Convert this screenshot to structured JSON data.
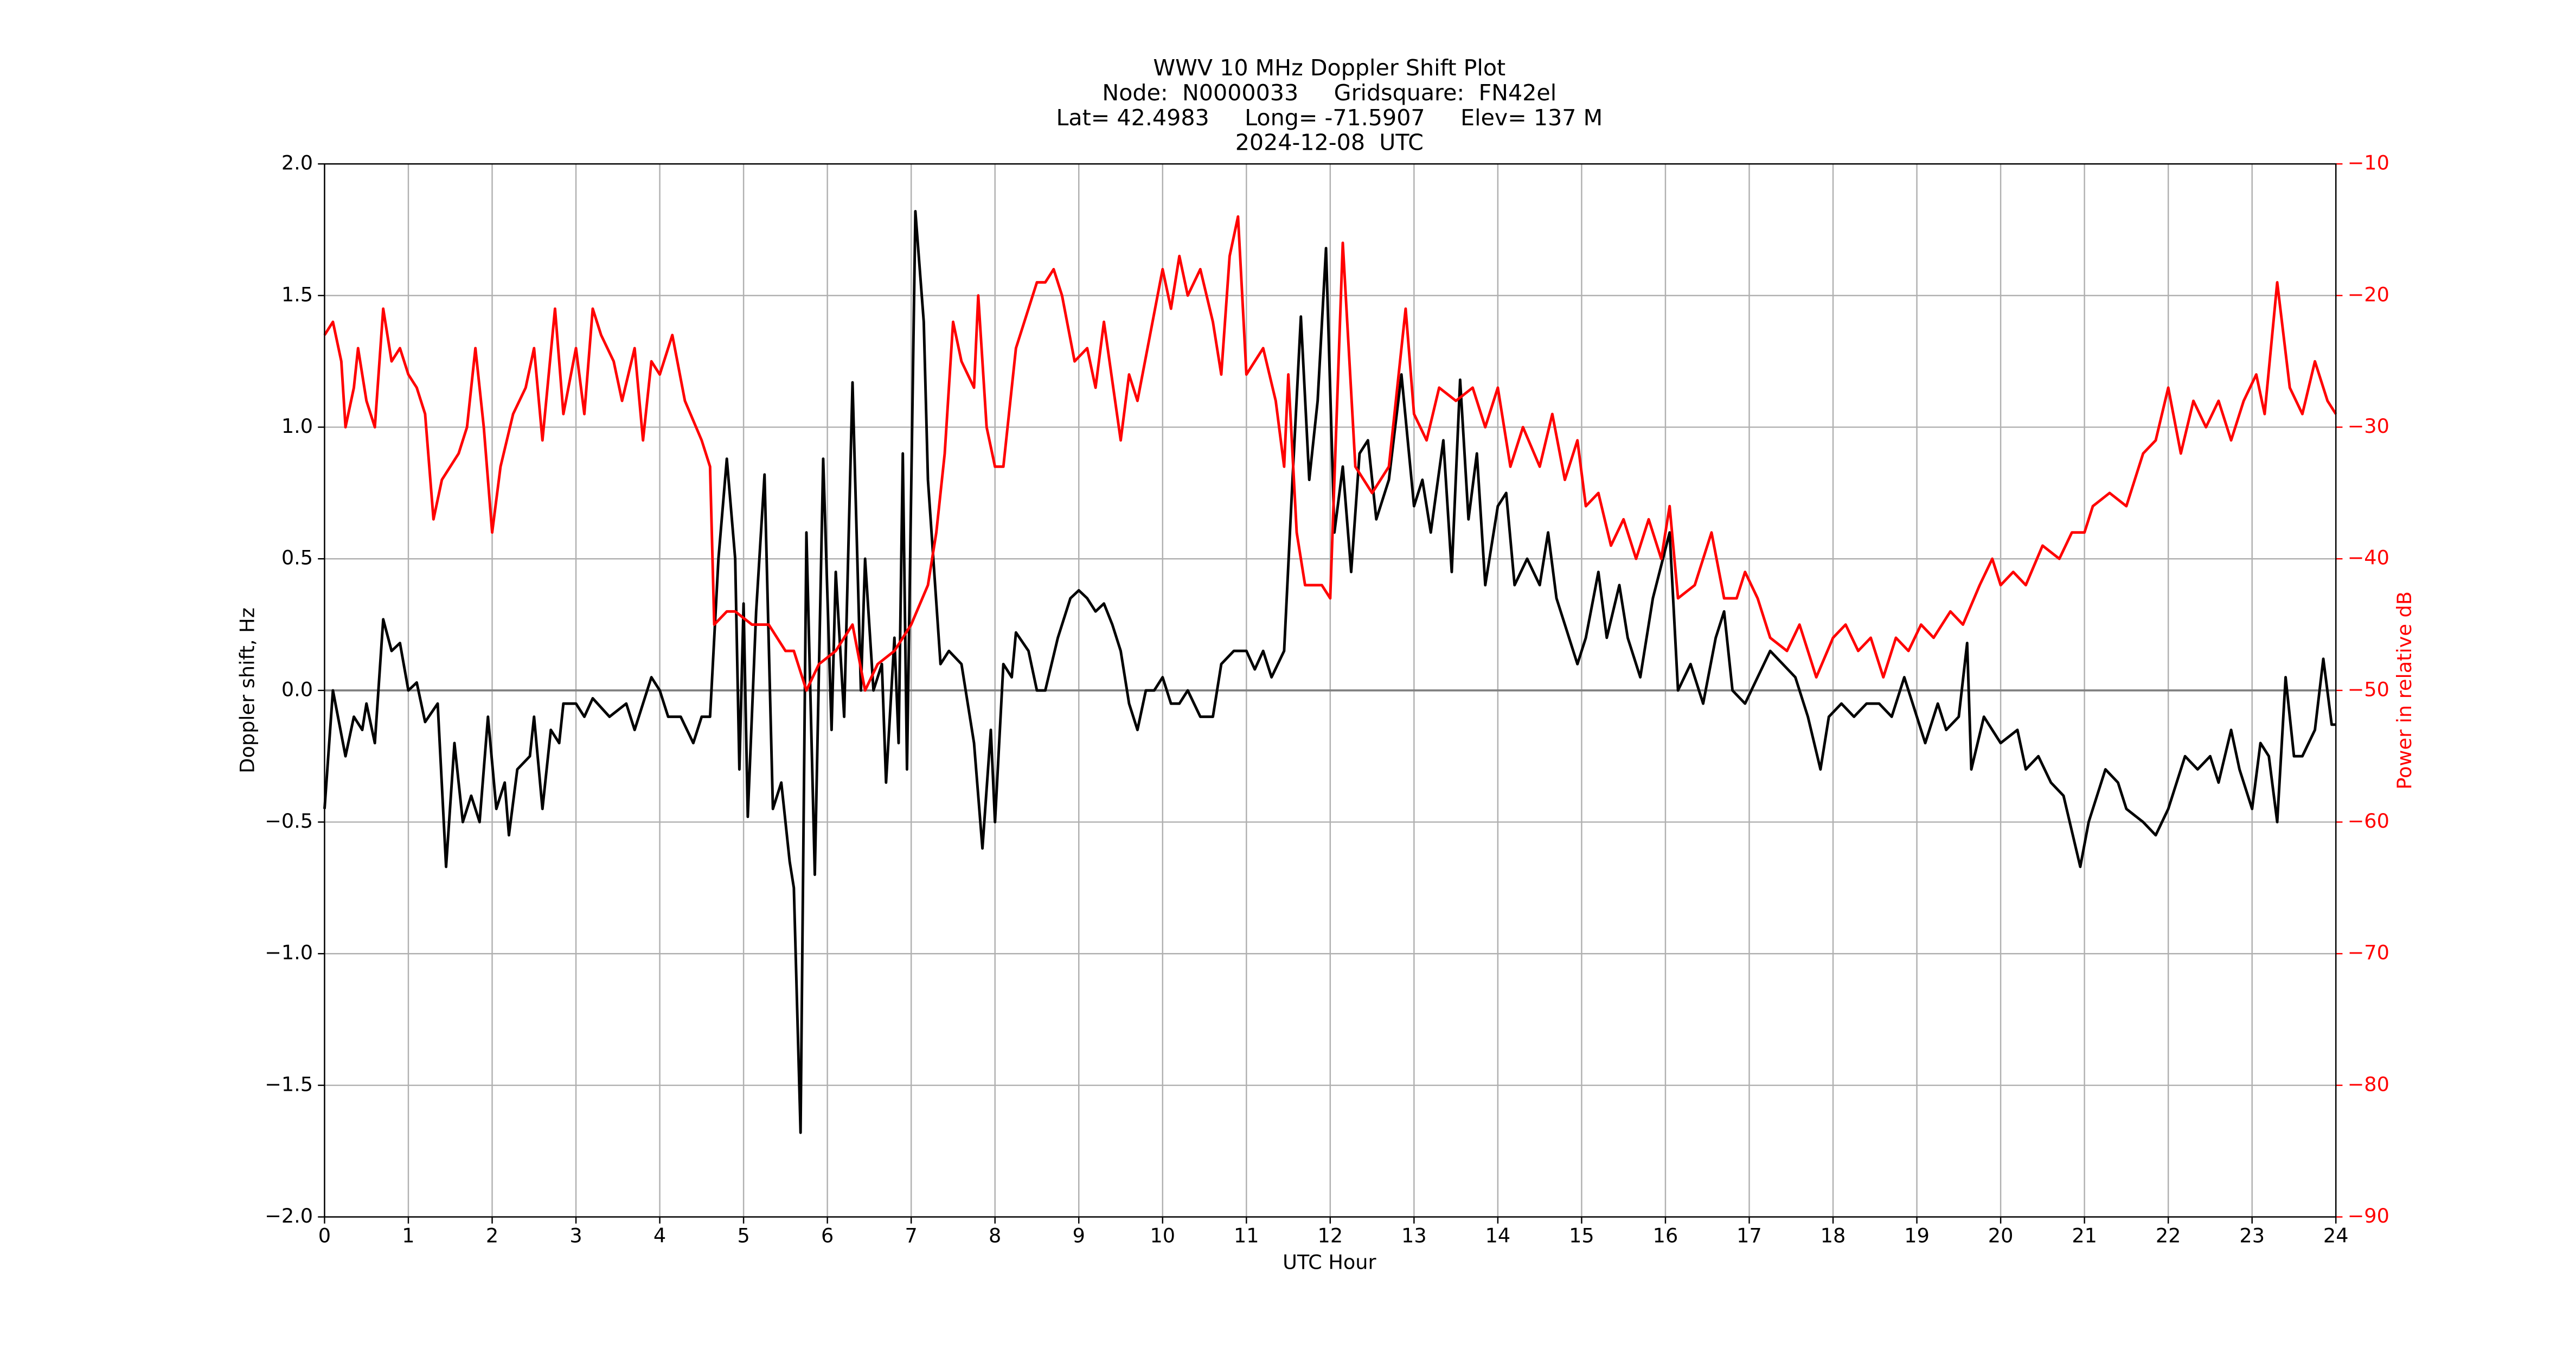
{
  "chart_data": {
    "type": "line",
    "title_lines": [
      "WWV 10 MHz Doppler Shift Plot",
      "Node:  N0000033     Gridsquare:  FN42el",
      "Lat= 42.4983     Long= -71.5907     Elev= 137 M",
      "2024-12-08  UTC"
    ],
    "x_label": "UTC Hour",
    "y_label": "Doppler shift, Hz",
    "y2_label": "Power in relative dB",
    "xlim": [
      0,
      24
    ],
    "xticks": [
      0,
      1,
      2,
      3,
      4,
      5,
      6,
      7,
      8,
      9,
      10,
      11,
      12,
      13,
      14,
      15,
      16,
      17,
      18,
      19,
      20,
      21,
      22,
      23,
      24
    ],
    "ylim": [
      -2.0,
      2.0
    ],
    "yticks": [
      {
        "value": -2.0,
        "label": "−2.0"
      },
      {
        "value": -1.5,
        "label": "−1.5"
      },
      {
        "value": -1.0,
        "label": "−1.0"
      },
      {
        "value": -0.5,
        "label": "−0.5"
      },
      {
        "value": 0.0,
        "label": "0.0"
      },
      {
        "value": 0.5,
        "label": "0.5"
      },
      {
        "value": 1.0,
        "label": "1.0"
      },
      {
        "value": 1.5,
        "label": "1.5"
      },
      {
        "value": 2.0,
        "label": "2.0"
      }
    ],
    "y2lim": [
      -90,
      -10
    ],
    "y2ticks": [
      {
        "value": -90,
        "label": "−90"
      },
      {
        "value": -80,
        "label": "−80"
      },
      {
        "value": -70,
        "label": "−70"
      },
      {
        "value": -60,
        "label": "−60"
      },
      {
        "value": -50,
        "label": "−50"
      },
      {
        "value": -40,
        "label": "−40"
      },
      {
        "value": -30,
        "label": "−30"
      },
      {
        "value": -20,
        "label": "−20"
      },
      {
        "value": -10,
        "label": "−10"
      }
    ],
    "y2_color": "#ff0000",
    "grid": true,
    "hline": 0,
    "series": [
      {
        "color": "#000000",
        "x": [
          0,
          0.1,
          0.25,
          0.35,
          0.45,
          0.5,
          0.6,
          0.7,
          0.8,
          0.9,
          1.0,
          1.1,
          1.2,
          1.35,
          1.45,
          1.55,
          1.65,
          1.75,
          1.85,
          1.95,
          2.05,
          2.15,
          2.2,
          2.3,
          2.45,
          2.5,
          2.6,
          2.7,
          2.8,
          2.85,
          3.0,
          3.1,
          3.2,
          3.4,
          3.6,
          3.7,
          3.8,
          3.9,
          4.0,
          4.1,
          4.25,
          4.4,
          4.5,
          4.6,
          4.7,
          4.8,
          4.9,
          4.95,
          5.0,
          5.05,
          5.15,
          5.25,
          5.35,
          5.45,
          5.55,
          5.6,
          5.68,
          5.75,
          5.85,
          5.95,
          6.05,
          6.1,
          6.2,
          6.3,
          6.4,
          6.45,
          6.55,
          6.65,
          6.7,
          6.8,
          6.85,
          6.9,
          6.95,
          7.05,
          7.15,
          7.2,
          7.35,
          7.45,
          7.6,
          7.75,
          7.85,
          7.95,
          8.0,
          8.1,
          8.2,
          8.25,
          8.4,
          8.5,
          8.6,
          8.75,
          8.9,
          9.0,
          9.1,
          9.2,
          9.3,
          9.4,
          9.5,
          9.6,
          9.7,
          9.8,
          9.9,
          10.0,
          10.1,
          10.2,
          10.3,
          10.45,
          10.6,
          10.7,
          10.85,
          11.0,
          11.1,
          11.2,
          11.3,
          11.45,
          11.55,
          11.65,
          11.75,
          11.85,
          11.95,
          12.05,
          12.15,
          12.25,
          12.35,
          12.45,
          12.55,
          12.7,
          12.85,
          13.0,
          13.1,
          13.2,
          13.35,
          13.45,
          13.55,
          13.65,
          13.75,
          13.85,
          14.0,
          14.1,
          14.2,
          14.35,
          14.5,
          14.6,
          14.7,
          14.85,
          14.95,
          15.05,
          15.2,
          15.3,
          15.45,
          15.55,
          15.7,
          15.85,
          16.05,
          16.15,
          16.3,
          16.45,
          16.6,
          16.7,
          16.8,
          16.95,
          17.1,
          17.25,
          17.4,
          17.55,
          17.7,
          17.85,
          17.95,
          18.1,
          18.25,
          18.4,
          18.55,
          18.7,
          18.85,
          19.0,
          19.1,
          19.25,
          19.35,
          19.5,
          19.6,
          19.65,
          19.8,
          20.0,
          20.2,
          20.3,
          20.45,
          20.6,
          20.75,
          20.95,
          21.05,
          21.25,
          21.4,
          21.5,
          21.7,
          21.85,
          22.0,
          22.1,
          22.2,
          22.35,
          22.5,
          22.6,
          22.75,
          22.85,
          23.0,
          23.1,
          23.2,
          23.3,
          23.4,
          23.5,
          23.6,
          23.75,
          23.85,
          23.95,
          24.0
        ],
        "values": [
          -0.45,
          0.0,
          -0.25,
          -0.1,
          -0.15,
          -0.05,
          -0.2,
          0.27,
          0.15,
          0.18,
          0.0,
          0.03,
          -0.12,
          -0.05,
          -0.67,
          -0.2,
          -0.5,
          -0.4,
          -0.5,
          -0.1,
          -0.45,
          -0.35,
          -0.55,
          -0.3,
          -0.25,
          -0.1,
          -0.45,
          -0.15,
          -0.2,
          -0.05,
          -0.05,
          -0.1,
          -0.03,
          -0.1,
          -0.05,
          -0.15,
          -0.05,
          0.05,
          0.0,
          -0.1,
          -0.1,
          -0.2,
          -0.1,
          -0.1,
          0.5,
          0.88,
          0.5,
          -0.3,
          0.33,
          -0.48,
          0.3,
          0.82,
          -0.45,
          -0.35,
          -0.65,
          -0.75,
          -1.68,
          0.6,
          -0.7,
          0.88,
          -0.15,
          0.45,
          -0.1,
          1.17,
          0.0,
          0.5,
          0.0,
          0.1,
          -0.35,
          0.2,
          -0.2,
          0.9,
          -0.3,
          1.82,
          1.4,
          0.8,
          0.1,
          0.15,
          0.1,
          -0.2,
          -0.6,
          -0.15,
          -0.5,
          0.1,
          0.05,
          0.22,
          0.15,
          0.0,
          0.0,
          0.2,
          0.35,
          0.38,
          0.35,
          0.3,
          0.33,
          0.25,
          0.15,
          -0.05,
          -0.15,
          0.0,
          0.0,
          0.05,
          -0.05,
          -0.05,
          0.0,
          -0.1,
          -0.1,
          0.1,
          0.15,
          0.15,
          0.08,
          0.15,
          0.05,
          0.15,
          0.8,
          1.42,
          0.8,
          1.1,
          1.68,
          0.6,
          0.85,
          0.45,
          0.9,
          0.95,
          0.65,
          0.8,
          1.2,
          0.7,
          0.8,
          0.6,
          0.95,
          0.45,
          1.18,
          0.65,
          0.9,
          0.4,
          0.7,
          0.75,
          0.4,
          0.5,
          0.4,
          0.6,
          0.35,
          0.2,
          0.1,
          0.2,
          0.45,
          0.2,
          0.4,
          0.2,
          0.05,
          0.35,
          0.6,
          0.0,
          0.1,
          -0.05,
          0.2,
          0.3,
          0.0,
          -0.05,
          0.05,
          0.15,
          0.1,
          0.05,
          -0.1,
          -0.3,
          -0.1,
          -0.05,
          -0.1,
          -0.05,
          -0.05,
          -0.1,
          0.05,
          -0.1,
          -0.2,
          -0.05,
          -0.15,
          -0.1,
          0.18,
          -0.3,
          -0.1,
          -0.2,
          -0.15,
          -0.3,
          -0.25,
          -0.35,
          -0.4,
          -0.67,
          -0.5,
          -0.3,
          -0.35,
          -0.45,
          -0.5,
          -0.55,
          -0.45,
          -0.35,
          -0.25,
          -0.3,
          -0.25,
          -0.35,
          -0.15,
          -0.3,
          -0.45,
          -0.2,
          -0.25,
          -0.5,
          0.05,
          -0.25,
          -0.25,
          -0.15,
          0.12,
          -0.13,
          -0.13
        ]
      },
      {
        "color": "#ff0000",
        "axis": "y2",
        "x": [
          0,
          0.1,
          0.2,
          0.25,
          0.35,
          0.4,
          0.5,
          0.6,
          0.7,
          0.8,
          0.9,
          1.0,
          1.1,
          1.2,
          1.3,
          1.4,
          1.6,
          1.7,
          1.8,
          1.9,
          2.0,
          2.1,
          2.25,
          2.4,
          2.5,
          2.6,
          2.75,
          2.85,
          3.0,
          3.1,
          3.2,
          3.3,
          3.45,
          3.55,
          3.7,
          3.8,
          3.9,
          4.0,
          4.15,
          4.3,
          4.5,
          4.6,
          4.65,
          4.8,
          4.9,
          5.1,
          5.3,
          5.5,
          5.6,
          5.75,
          5.9,
          6.1,
          6.3,
          6.45,
          6.6,
          6.8,
          7.0,
          7.2,
          7.3,
          7.4,
          7.5,
          7.6,
          7.75,
          7.8,
          7.9,
          8.0,
          8.1,
          8.25,
          8.35,
          8.5,
          8.6,
          8.7,
          8.8,
          8.95,
          9.1,
          9.2,
          9.3,
          9.5,
          9.6,
          9.7,
          9.85,
          10.0,
          10.1,
          10.2,
          10.3,
          10.45,
          10.6,
          10.7,
          10.8,
          10.9,
          11.0,
          11.2,
          11.35,
          11.45,
          11.5,
          11.6,
          11.7,
          11.9,
          12.0,
          12.15,
          12.3,
          12.5,
          12.7,
          12.9,
          13.0,
          13.15,
          13.3,
          13.5,
          13.7,
          13.85,
          14.0,
          14.15,
          14.3,
          14.5,
          14.65,
          14.8,
          14.95,
          15.05,
          15.2,
          15.35,
          15.5,
          15.65,
          15.8,
          15.95,
          16.05,
          16.15,
          16.35,
          16.55,
          16.7,
          16.85,
          16.95,
          17.1,
          17.25,
          17.45,
          17.6,
          17.8,
          18.0,
          18.15,
          18.3,
          18.45,
          18.6,
          18.75,
          18.9,
          19.05,
          19.2,
          19.4,
          19.55,
          19.75,
          19.9,
          20.0,
          20.15,
          20.3,
          20.5,
          20.7,
          20.85,
          21.0,
          21.1,
          21.3,
          21.5,
          21.7,
          21.85,
          22.0,
          22.15,
          22.3,
          22.45,
          22.6,
          22.75,
          22.9,
          23.05,
          23.15,
          23.3,
          23.45,
          23.6,
          23.75,
          23.9,
          24.0
        ],
        "values": [
          -23,
          -22,
          -25,
          -30,
          -27,
          -24,
          -28,
          -30,
          -21,
          -25,
          -24,
          -26,
          -27,
          -29,
          -37,
          -34,
          -32,
          -30,
          -24,
          -30,
          -38,
          -33,
          -29,
          -27,
          -24,
          -31,
          -21,
          -29,
          -24,
          -29,
          -21,
          -23,
          -25,
          -28,
          -24,
          -31,
          -25,
          -26,
          -23,
          -28,
          -31,
          -33,
          -45,
          -44,
          -44,
          -45,
          -45,
          -47,
          -47,
          -50,
          -48,
          -47,
          -45,
          -50,
          -48,
          -47,
          -45,
          -42,
          -38,
          -32,
          -22,
          -25,
          -27,
          -20,
          -30,
          -33,
          -33,
          -24,
          -22,
          -19,
          -19,
          -18,
          -20,
          -25,
          -24,
          -27,
          -22,
          -31,
          -26,
          -28,
          -23,
          -18,
          -21,
          -17,
          -20,
          -18,
          -22,
          -26,
          -17,
          -14,
          -26,
          -24,
          -28,
          -33,
          -26,
          -38,
          -42,
          -42,
          -43,
          -16,
          -33,
          -35,
          -33,
          -21,
          -29,
          -31,
          -27,
          -28,
          -27,
          -30,
          -27,
          -33,
          -30,
          -33,
          -29,
          -34,
          -31,
          -36,
          -35,
          -39,
          -37,
          -40,
          -37,
          -40,
          -36,
          -43,
          -42,
          -38,
          -43,
          -43,
          -41,
          -43,
          -46,
          -47,
          -45,
          -49,
          -46,
          -45,
          -47,
          -46,
          -49,
          -46,
          -47,
          -45,
          -46,
          -44,
          -45,
          -42,
          -40,
          -42,
          -41,
          -42,
          -39,
          -40,
          -38,
          -38,
          -36,
          -35,
          -36,
          -32,
          -31,
          -27,
          -32,
          -28,
          -30,
          -28,
          -31,
          -28,
          -26,
          -29,
          -19,
          -27,
          -29,
          -25,
          -28,
          -29
        ]
      }
    ]
  }
}
